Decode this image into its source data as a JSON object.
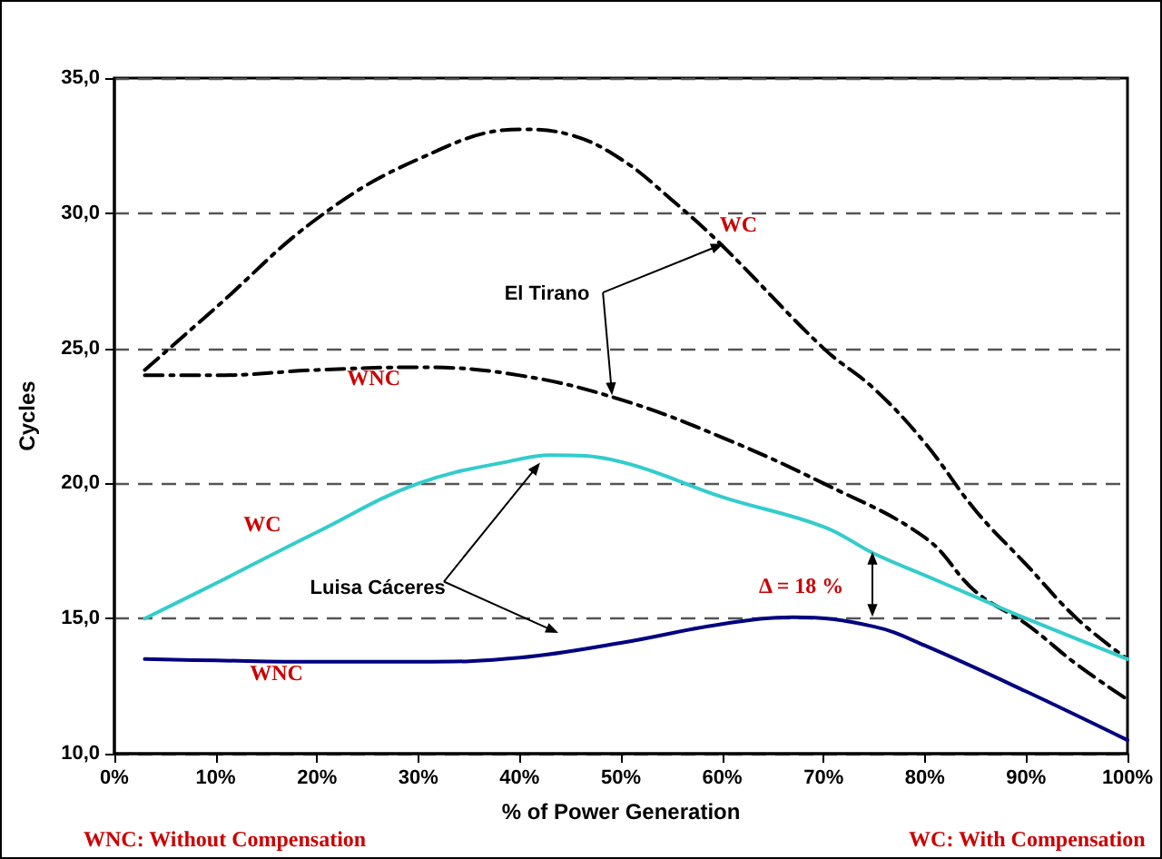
{
  "chart_data": {
    "type": "line",
    "xlabel": "% of Power Generation",
    "ylabel": "Cycles",
    "xlim": [
      0,
      100
    ],
    "xticks": [
      {
        "value": 0,
        "label": "0%"
      },
      {
        "value": 10,
        "label": "10%"
      },
      {
        "value": 20,
        "label": "20%"
      },
      {
        "value": 30,
        "label": "30%"
      },
      {
        "value": 40,
        "label": "40%"
      },
      {
        "value": 50,
        "label": "50%"
      },
      {
        "value": 60,
        "label": "60%"
      },
      {
        "value": 70,
        "label": "70%"
      },
      {
        "value": 80,
        "label": "80%"
      },
      {
        "value": 90,
        "label": "90%"
      },
      {
        "value": 100,
        "label": "100%"
      }
    ],
    "ylim": [
      10,
      35
    ],
    "yticks": [
      {
        "value": 10,
        "label": "10,0"
      },
      {
        "value": 15,
        "label": "15,0"
      },
      {
        "value": 20,
        "label": "20,0"
      },
      {
        "value": 25,
        "label": "25,0"
      },
      {
        "value": 30,
        "label": "30,0"
      },
      {
        "value": 35,
        "label": "35,0"
      }
    ],
    "grid": "y",
    "marker": "none",
    "series": [
      {
        "color": "#000000",
        "line_style": "dashed",
        "x": [
          3,
          10,
          20,
          30,
          40,
          45,
          50,
          55,
          60,
          70,
          75,
          80,
          85,
          90,
          95,
          100
        ],
        "values": [
          24.2,
          26.5,
          29.8,
          32,
          33.1,
          32.9,
          32,
          30.5,
          28.8,
          25,
          23.5,
          21.5,
          19,
          17,
          15,
          13.5
        ]
      },
      {
        "color": "#000000",
        "line_style": "dashed",
        "x": [
          3,
          10,
          20,
          30,
          40,
          50,
          60,
          70,
          80,
          85,
          90,
          95,
          100
        ],
        "values": [
          24,
          24,
          24.2,
          24.3,
          24,
          23.1,
          21.7,
          20,
          18,
          16,
          14.8,
          13.3,
          12
        ]
      },
      {
        "color": "#33cccc",
        "line_style": "solid",
        "x": [
          3,
          10,
          20,
          30,
          40,
          43,
          50,
          60,
          70,
          75,
          80,
          85,
          90,
          100
        ],
        "values": [
          15,
          16.3,
          18.2,
          20,
          20.9,
          21.05,
          20.8,
          19.5,
          18.4,
          17.4,
          16.6,
          15.8,
          15,
          13.5
        ]
      },
      {
        "color": "#000080",
        "line_style": "solid",
        "x": [
          3,
          10,
          20,
          30,
          40,
          50,
          60,
          67,
          75,
          80,
          90,
          100
        ],
        "values": [
          13.5,
          13.45,
          13.4,
          13.4,
          13.55,
          14.1,
          14.8,
          15.05,
          14.7,
          14,
          12.3,
          10.5
        ]
      }
    ],
    "annotations": [
      "WNC: Without Compensation",
      "WC: With Compensation",
      "El Tirano",
      "WC",
      "WNC",
      "WC",
      "Luisa Cáceres",
      "WNC",
      "Δ = 18 %"
    ]
  }
}
